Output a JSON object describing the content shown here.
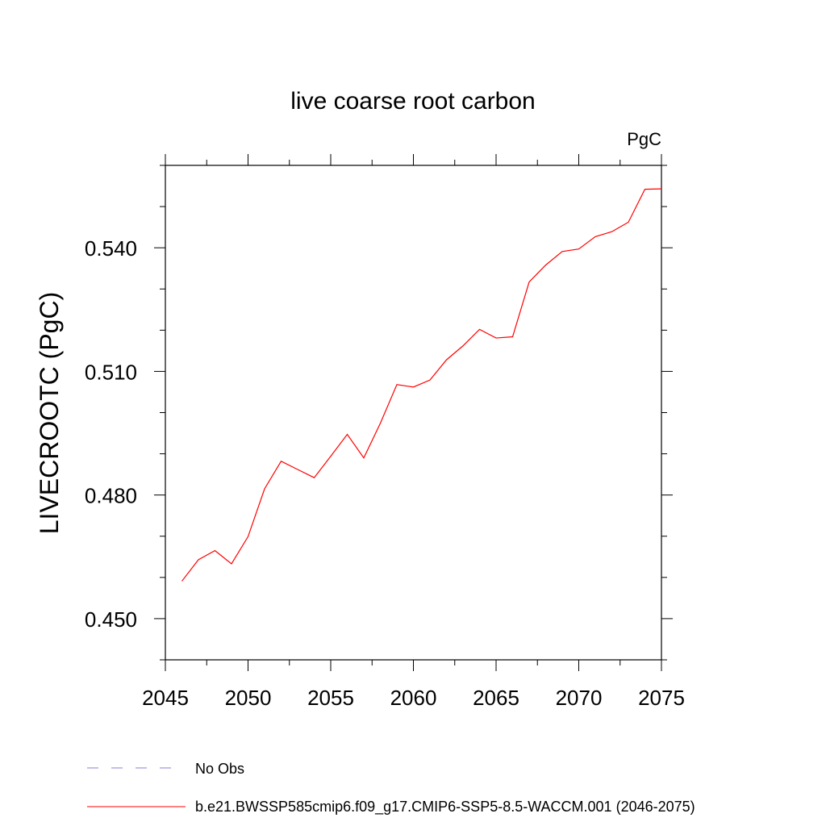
{
  "chart_data": {
    "type": "line",
    "title": "live coarse root carbon",
    "units_label": "PgC",
    "ylabel": "LIVECROOTC  (PgC)",
    "xlabel": "",
    "xlim": [
      2045,
      2075
    ],
    "ylim": [
      0.44,
      0.56
    ],
    "x_major_ticks": [
      2045,
      2050,
      2055,
      2060,
      2065,
      2070,
      2075
    ],
    "x_tick_labels": [
      "2045",
      "2050",
      "2055",
      "2060",
      "2065",
      "2070",
      "2075"
    ],
    "y_major_ticks": [
      0.45,
      0.48,
      0.51,
      0.54
    ],
    "y_tick_labels": [
      "0.450",
      "0.480",
      "0.510",
      "0.540"
    ],
    "grid": false,
    "legend_position": "bottom",
    "series": [
      {
        "name": "b.e21.BWSSP585cmip6.f09_g17.CMIP6-SSP5-8.5-WACCM.001 (2046-2075)",
        "color": "#ff0000",
        "style": "solid",
        "x": [
          2046,
          2047,
          2048,
          2049,
          2050,
          2051,
          2052,
          2053,
          2054,
          2055,
          2056,
          2057,
          2058,
          2059,
          2060,
          2061,
          2062,
          2063,
          2064,
          2065,
          2066,
          2067,
          2068,
          2069,
          2070,
          2071,
          2072,
          2073,
          2074,
          2075
        ],
        "values": [
          0.4591,
          0.4643,
          0.4665,
          0.4633,
          0.4699,
          0.4815,
          0.4882,
          0.4862,
          0.4842,
          0.4894,
          0.4947,
          0.489,
          0.4974,
          0.5068,
          0.5062,
          0.5079,
          0.5128,
          0.5162,
          0.5202,
          0.5181,
          0.5184,
          0.5317,
          0.5358,
          0.5391,
          0.5397,
          0.5427,
          0.5439,
          0.5462,
          0.5542,
          0.5543
        ]
      }
    ],
    "legend": [
      {
        "label": "No Obs",
        "color": "#8a7fd0",
        "style": "dashed"
      },
      {
        "label": "b.e21.BWSSP585cmip6.f09_g17.CMIP6-SSP5-8.5-WACCM.001 (2046-2075)",
        "color": "#ff0000",
        "style": "solid"
      }
    ]
  }
}
